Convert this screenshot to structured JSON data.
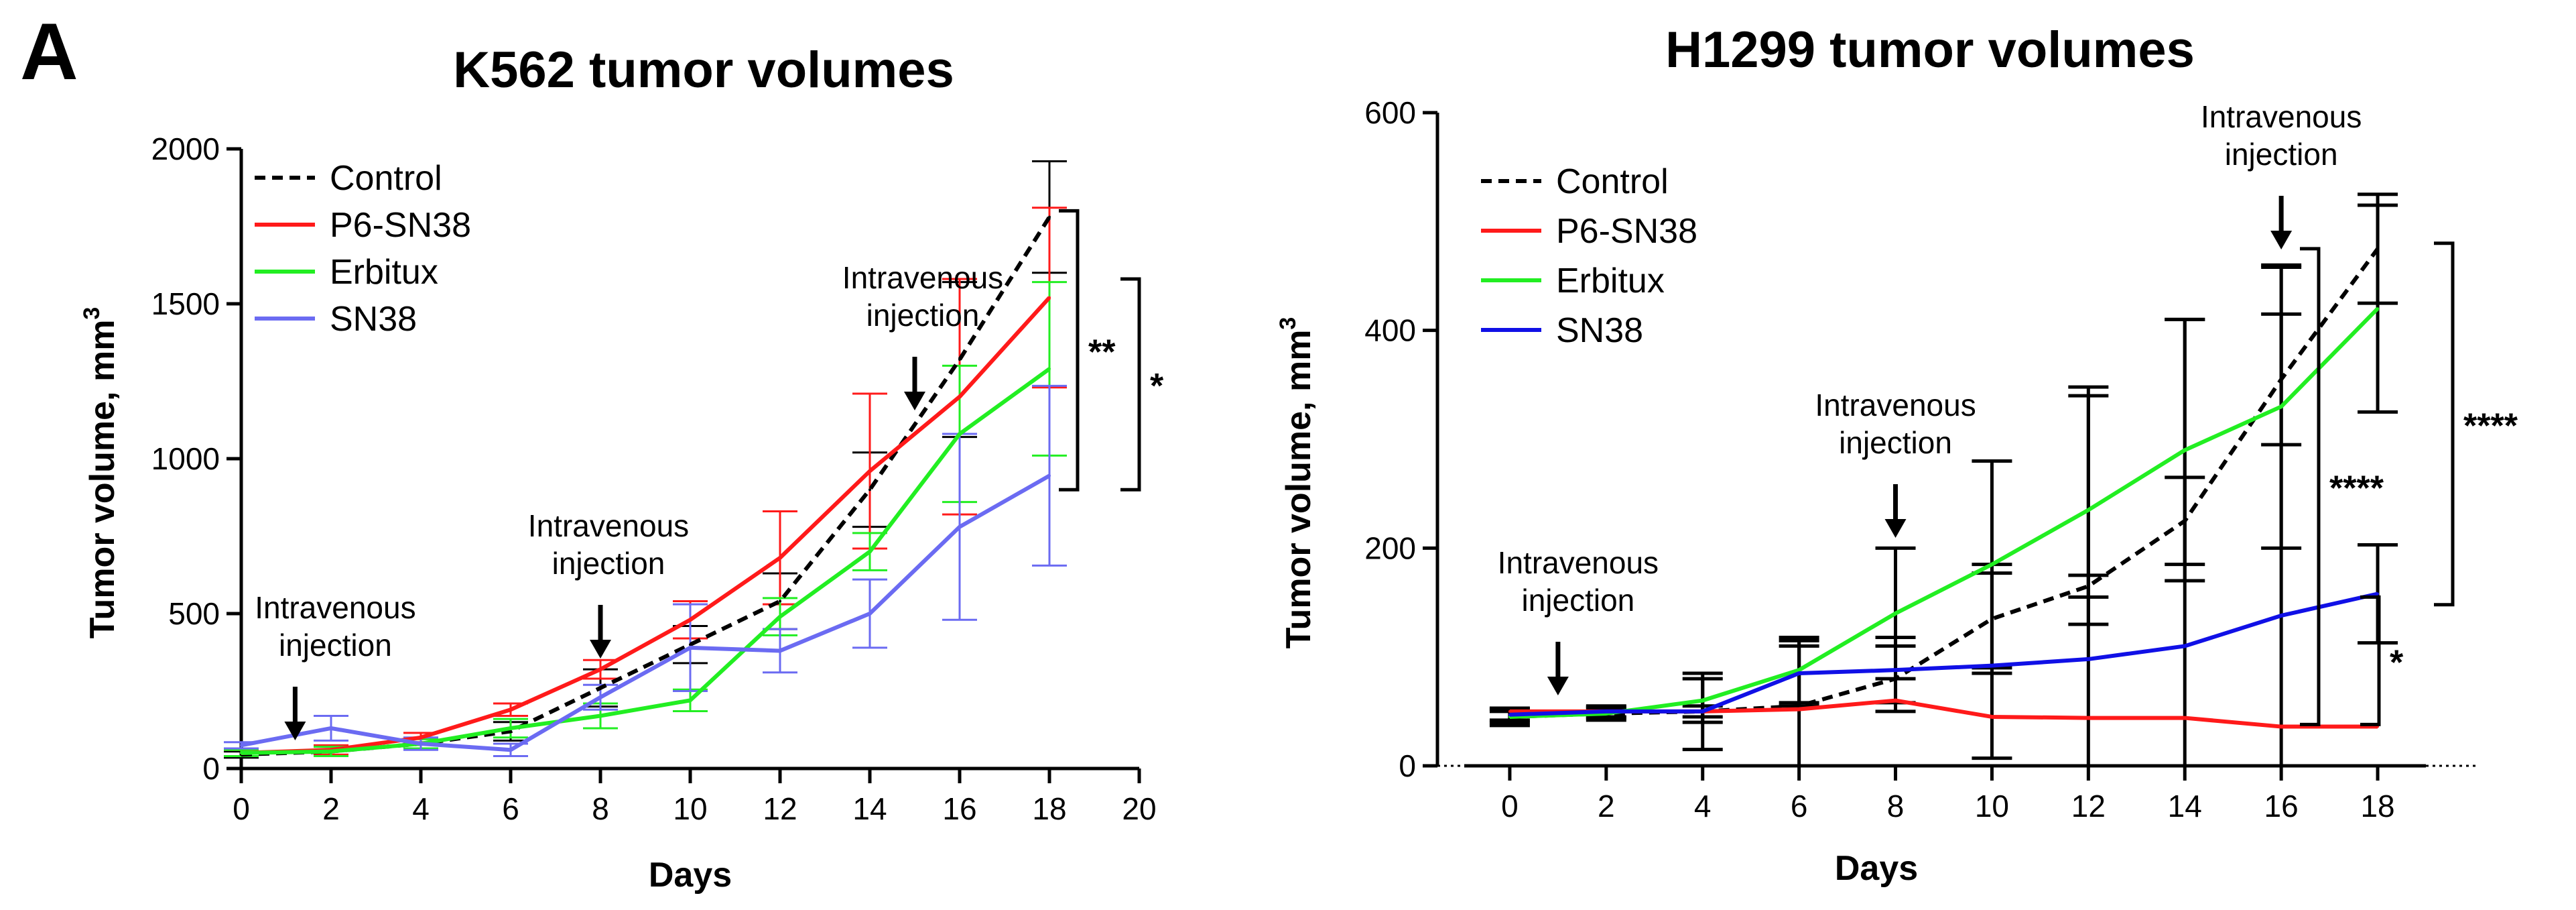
{
  "panel_label": "A",
  "colors": {
    "control": "#000000",
    "p6": "#ff1a1a",
    "erbitux": "#22ee22",
    "sn38_left": "#6b6bf2",
    "sn38_right": "#1010e6",
    "axis": "#000000"
  },
  "chart_data": [
    {
      "type": "line",
      "title": "K562 tumor volumes",
      "xlabel": "Days",
      "ylabel_main": "Tumor volume, mm",
      "ylabel_sup": "3",
      "xlim": [
        0,
        20
      ],
      "ylim": [
        0,
        2000
      ],
      "xticks": [
        0,
        2,
        4,
        6,
        8,
        10,
        12,
        14,
        16,
        18,
        20
      ],
      "yticks": [
        0,
        500,
        1000,
        1500,
        2000
      ],
      "x": [
        0,
        2,
        4,
        6,
        8,
        10,
        12,
        14,
        16,
        18
      ],
      "series": [
        {
          "name": "Control",
          "dashed": true,
          "color_key": "control",
          "values": [
            45,
            55,
            80,
            120,
            260,
            400,
            540,
            900,
            1320,
            1780
          ],
          "errors": [
            10,
            15,
            15,
            30,
            60,
            60,
            90,
            120,
            250,
            180
          ]
        },
        {
          "name": "P6-SN38",
          "dashed": false,
          "color_key": "p6",
          "values": [
            50,
            60,
            100,
            190,
            320,
            480,
            680,
            960,
            1200,
            1520
          ],
          "errors": [
            10,
            15,
            15,
            20,
            30,
            60,
            150,
            250,
            380,
            290
          ]
        },
        {
          "name": "Erbitux",
          "dashed": false,
          "color_key": "erbitux",
          "values": [
            50,
            55,
            80,
            130,
            170,
            220,
            490,
            700,
            1080,
            1290
          ],
          "errors": [
            10,
            15,
            15,
            30,
            40,
            35,
            60,
            60,
            220,
            280
          ]
        },
        {
          "name": "SN38",
          "dashed": false,
          "color_key": "sn38_left",
          "values": [
            75,
            130,
            80,
            60,
            230,
            390,
            380,
            500,
            780,
            945
          ],
          "errors": [
            10,
            40,
            20,
            20,
            40,
            140,
            70,
            110,
            300,
            290
          ]
        }
      ],
      "annotations": [
        {
          "text_lines": [
            "Intravenous",
            "injection"
          ],
          "x": 1.2
        },
        {
          "text_lines": [
            "Intravenous",
            "injection"
          ],
          "x": 8
        },
        {
          "text_lines": [
            "Intravenous",
            "injection"
          ],
          "x": 15
        }
      ],
      "significance": [
        {
          "label": "**",
          "from": 1800,
          "to": 900
        },
        {
          "label": "*",
          "from": 1580,
          "to": 900
        }
      ]
    },
    {
      "type": "line",
      "title": "H1299 tumor volumes",
      "xlabel": "Days",
      "ylabel_main": "Tumor volume, mm",
      "ylabel_sup": "3",
      "xlim": [
        -1.5,
        19
      ],
      "ylim": [
        0,
        600
      ],
      "xticks": [
        0,
        2,
        4,
        6,
        8,
        10,
        12,
        14,
        16,
        18
      ],
      "yticks": [
        0,
        200,
        400,
        600
      ],
      "x": [
        0,
        2,
        4,
        6,
        8,
        10,
        12,
        14,
        16,
        18
      ],
      "series": [
        {
          "name": "Control",
          "dashed": true,
          "color_key": "control",
          "values": [
            45,
            48,
            50,
            55,
            80,
            135,
            165,
            225,
            355,
            475
          ],
          "errors": [
            8,
            6,
            35,
            55,
            30,
            50,
            10,
            40,
            60,
            50
          ]
        },
        {
          "name": "P6-SN38",
          "dashed": false,
          "color_key": "p6",
          "values": [
            50,
            50,
            50,
            52,
            60,
            45,
            44,
            44,
            36,
            36
          ],
          "errors": [
            0,
            0,
            0,
            0,
            0,
            0,
            0,
            0,
            0,
            0
          ]
        },
        {
          "name": "Erbitux",
          "dashed": false,
          "color_key": "erbitux",
          "values": [
            45,
            48,
            60,
            88,
            140,
            185,
            235,
            290,
            330,
            420
          ],
          "errors": [
            5,
            4,
            20,
            30,
            60,
            95,
            105,
            120,
            130,
            95
          ]
        },
        {
          "name": "SN38",
          "dashed": false,
          "color_key": "sn38_right",
          "values": [
            47,
            50,
            50,
            85,
            88,
            92,
            98,
            110,
            138,
            158
          ],
          "errors": [
            5,
            5,
            5,
            30,
            30,
            85,
            250,
            300,
            320,
            45
          ]
        }
      ],
      "annotations": [
        {
          "text_lines": [
            "Intravenous",
            "injection"
          ],
          "x": 1
        },
        {
          "text_lines": [
            "Intravenous",
            "injection"
          ],
          "x": 8
        },
        {
          "text_lines": [
            "Intravenous",
            "injection"
          ],
          "x": 16
        }
      ],
      "significance": [
        {
          "label": "****",
          "from": 480,
          "to": 148,
          "pos": 1
        },
        {
          "label": "****",
          "from": 475,
          "to": 38,
          "pos": 0
        },
        {
          "label": "*",
          "from": 155,
          "to": 38,
          "pos": 0
        }
      ]
    }
  ]
}
